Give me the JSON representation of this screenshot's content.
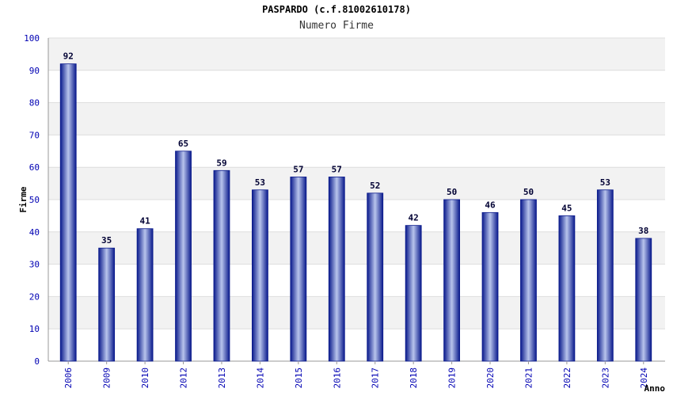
{
  "chart_data": {
    "type": "bar",
    "title": "PASPARDO (c.f.81002610178)",
    "subtitle": "Numero Firme",
    "xlabel": "Anno",
    "ylabel": "Firme",
    "categories": [
      "2006",
      "2009",
      "2010",
      "2012",
      "2013",
      "2014",
      "2015",
      "2016",
      "2017",
      "2018",
      "2019",
      "2020",
      "2021",
      "2022",
      "2023",
      "2024"
    ],
    "values": [
      92,
      35,
      41,
      65,
      59,
      53,
      57,
      57,
      52,
      42,
      50,
      46,
      50,
      45,
      53,
      38
    ],
    "ylim": [
      0,
      100
    ],
    "yticks": [
      0,
      10,
      20,
      30,
      40,
      50,
      60,
      70,
      80,
      90,
      100
    ],
    "grid": true,
    "legend": "none"
  },
  "colors": {
    "bar_dark": "#0a1a8c",
    "bar_light": "#b8c4ec",
    "band": "#f2f2f2",
    "tick_label": "#0000b3",
    "data_label": "#000033"
  }
}
